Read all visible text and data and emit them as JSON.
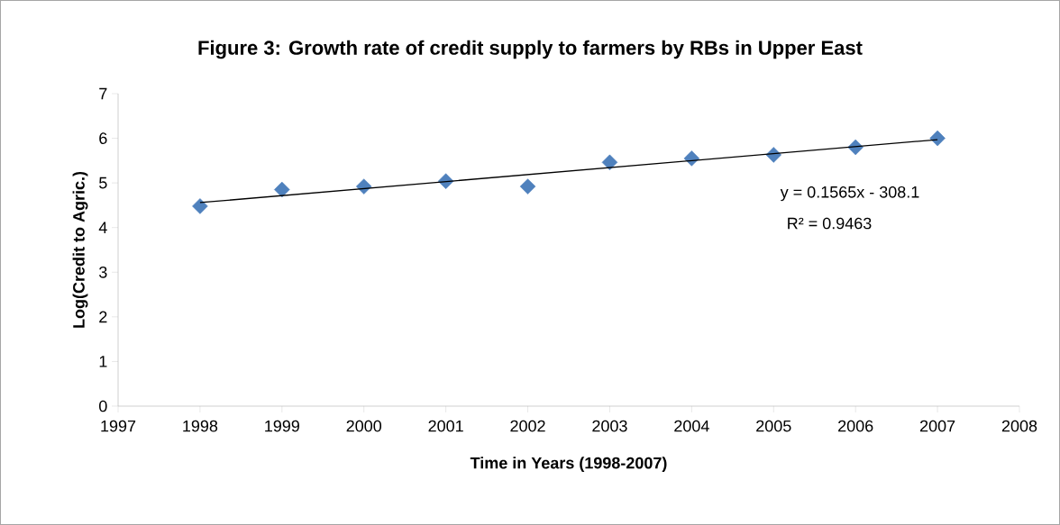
{
  "chart_data": {
    "type": "scatter",
    "title": "Figure 3: Growth rate of credit supply to farmers by RBs in Upper East",
    "xlabel": "Time in Years (1998-2007)",
    "ylabel": "Log(Credit to Agric.)",
    "x": [
      1998,
      1999,
      2000,
      2001,
      2002,
      2003,
      2004,
      2005,
      2006,
      2007
    ],
    "series": [
      {
        "color": "#4f81bd",
        "marker": "diamond",
        "values": [
          4.48,
          4.85,
          4.92,
          5.04,
          4.92,
          5.46,
          5.55,
          5.63,
          5.8,
          6.0
        ]
      },
      {
        "type": "line",
        "color": "#000000",
        "marker": "none",
        "x": [
          1998,
          2007
        ],
        "values": [
          4.56,
          5.97
        ]
      }
    ],
    "xlim": [
      1997,
      2008
    ],
    "xticks": [
      1997,
      1998,
      1999,
      2000,
      2001,
      2002,
      2003,
      2004,
      2005,
      2006,
      2007,
      2008
    ],
    "ylim": [
      0,
      7
    ],
    "yticks": [
      0,
      1,
      2,
      3,
      4,
      5,
      6,
      7
    ],
    "annotations": [
      "y = 0.1565x - 308.1",
      "R² = 0.9463"
    ],
    "grid": false
  }
}
